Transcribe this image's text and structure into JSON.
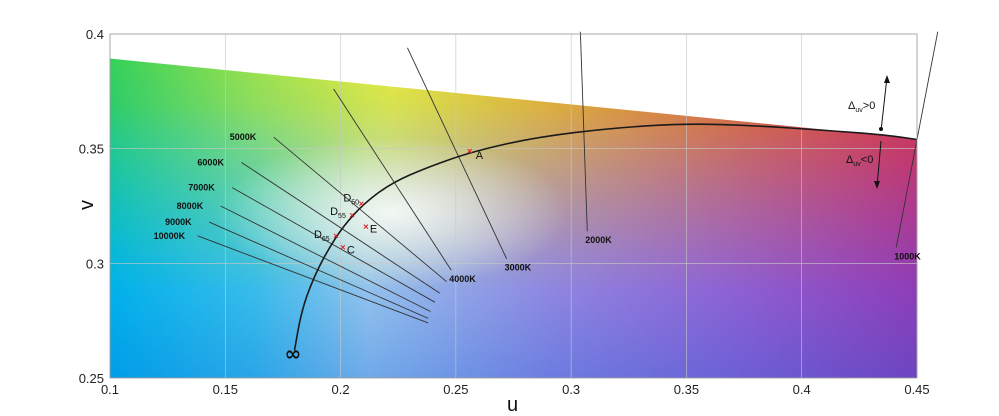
{
  "chart_data": {
    "type": "line",
    "xlabel": "u",
    "ylabel": "v",
    "xlim": [
      0.1,
      0.45
    ],
    "ylim": [
      0.25,
      0.4
    ],
    "x_ticks": [
      "0.1",
      "0.15",
      "0.2",
      "0.25",
      "0.3",
      "0.35",
      "0.4",
      "0.45"
    ],
    "y_ticks": [
      "0.25",
      "0.3",
      "0.35",
      "0.4"
    ],
    "grid": true,
    "background": "CIE 1960 UCS chromaticity colors",
    "planckian_locus": {
      "infinity_label": "∞",
      "points": [
        [
          0.18,
          0.262
        ],
        [
          0.183,
          0.279
        ],
        [
          0.188,
          0.293
        ],
        [
          0.194,
          0.305
        ],
        [
          0.201,
          0.316
        ],
        [
          0.21,
          0.326
        ],
        [
          0.222,
          0.335
        ],
        [
          0.238,
          0.342
        ],
        [
          0.258,
          0.349
        ],
        [
          0.285,
          0.355
        ],
        [
          0.318,
          0.359
        ],
        [
          0.35,
          0.361
        ],
        [
          0.38,
          0.36
        ],
        [
          0.41,
          0.358
        ],
        [
          0.436,
          0.356
        ],
        [
          0.45,
          0.354
        ]
      ]
    },
    "isotherms": [
      {
        "label": "10000K",
        "from": [
          0.138,
          0.312
        ],
        "to": [
          0.238,
          0.274
        ]
      },
      {
        "label": "9000K",
        "from": [
          0.143,
          0.318
        ],
        "to": [
          0.238,
          0.276
        ]
      },
      {
        "label": "8000K",
        "from": [
          0.148,
          0.325
        ],
        "to": [
          0.239,
          0.279
        ]
      },
      {
        "label": "7000K",
        "from": [
          0.153,
          0.333
        ],
        "to": [
          0.241,
          0.283
        ]
      },
      {
        "label": "6000K",
        "from": [
          0.157,
          0.344
        ],
        "to": [
          0.243,
          0.287
        ]
      },
      {
        "label": "5000K",
        "from": [
          0.171,
          0.355
        ],
        "to": [
          0.246,
          0.292
        ]
      },
      {
        "label": "4000K",
        "from": [
          0.197,
          0.376
        ],
        "to": [
          0.248,
          0.297
        ]
      },
      {
        "label": "3000K",
        "from": [
          0.229,
          0.394
        ],
        "to": [
          0.272,
          0.302
        ]
      },
      {
        "label": "2000K",
        "from": [
          0.304,
          0.401
        ],
        "to": [
          0.307,
          0.314
        ]
      },
      {
        "label": "1000K",
        "from": [
          0.459,
          0.401
        ],
        "to": [
          0.441,
          0.307
        ]
      }
    ],
    "points": [
      {
        "label": "A",
        "sub": "",
        "u": 0.256,
        "v": 0.349
      },
      {
        "label": "D",
        "sub": "50",
        "u": 0.209,
        "v": 0.326
      },
      {
        "label": "D",
        "sub": "55",
        "u": 0.205,
        "v": 0.321
      },
      {
        "label": "D",
        "sub": "65",
        "u": 0.198,
        "v": 0.312
      },
      {
        "label": "E",
        "sub": "",
        "u": 0.211,
        "v": 0.316
      },
      {
        "label": "C",
        "sub": "",
        "u": 0.201,
        "v": 0.307
      }
    ],
    "delta_uv": {
      "positive_label": "Δ",
      "positive_sub": "uv",
      "positive_rel": ">0",
      "negative_label": "Δ",
      "negative_sub": "uv",
      "negative_rel": "<0"
    }
  }
}
